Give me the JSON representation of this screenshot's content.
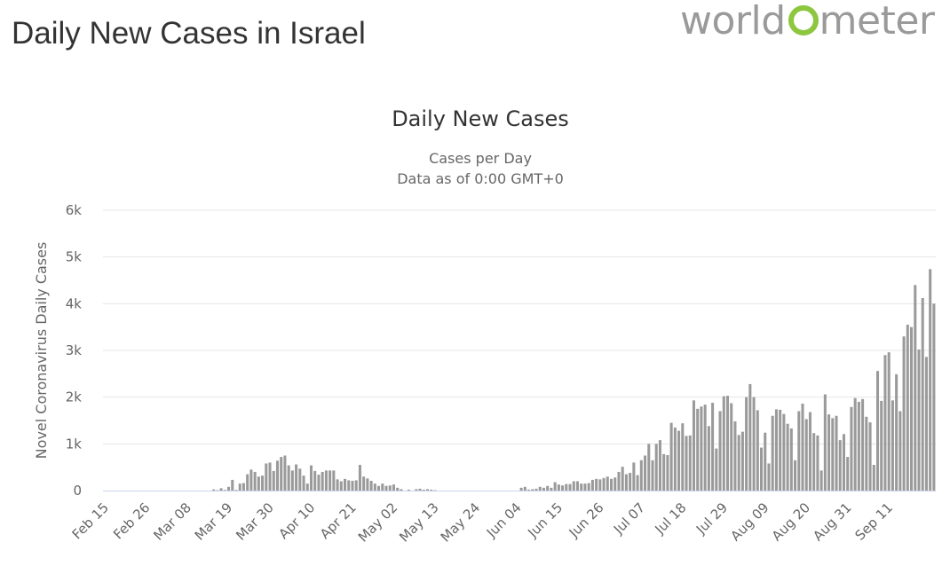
{
  "page": {
    "title": "Daily New Cases in Israel"
  },
  "logo": {
    "text_pre": "world",
    "text_post": "meter",
    "icon": "worldometer-logo-icon"
  },
  "colors": {
    "bar": "#9a9a9a",
    "grid": "#e6e6e6",
    "axis_text": "#666666",
    "title_text": "#333333",
    "logo_green": "#8dc63f"
  },
  "chart_data": {
    "type": "bar",
    "title": "Daily New Cases",
    "subtitle_lines": [
      "Cases per Day",
      "Data as of 0:00 GMT+0"
    ],
    "xlabel": "",
    "ylabel": "Novel Coronavirus Daily Cases",
    "ylim": [
      0,
      6000
    ],
    "ytick_values": [
      0,
      1000,
      2000,
      3000,
      4000,
      5000,
      6000
    ],
    "ytick_labels": [
      "0",
      "1k",
      "2k",
      "3k",
      "4k",
      "5k",
      "6k"
    ],
    "xtick_labels": [
      "Feb 15",
      "Feb 26",
      "Mar 08",
      "Mar 19",
      "Mar 30",
      "Apr 10",
      "Apr 21",
      "May 02",
      "May 13",
      "May 24",
      "Jun 04",
      "Jun 15",
      "Jun 26",
      "Jul 07",
      "Jul 18",
      "Jul 29",
      "Aug 09",
      "Aug 20",
      "Aug 31",
      "Sep 11"
    ],
    "xtick_interval_days": 11,
    "start_date": "Feb 15",
    "values": [
      0,
      0,
      0,
      0,
      0,
      0,
      0,
      0,
      0,
      0,
      0,
      0,
      0,
      0,
      0,
      0,
      0,
      0,
      0,
      0,
      0,
      0,
      0,
      0,
      0,
      0,
      0,
      0,
      0,
      25,
      10,
      50,
      15,
      80,
      230,
      15,
      150,
      160,
      350,
      450,
      400,
      300,
      320,
      580,
      600,
      420,
      640,
      720,
      750,
      540,
      430,
      560,
      470,
      320,
      150,
      540,
      420,
      340,
      400,
      430,
      430,
      430,
      240,
      200,
      250,
      220,
      210,
      220,
      550,
      300,
      260,
      210,
      150,
      100,
      150,
      100,
      110,
      130,
      60,
      30,
      0,
      20,
      0,
      30,
      40,
      20,
      30,
      20,
      10,
      0,
      0,
      0,
      0,
      0,
      0,
      0,
      0,
      0,
      0,
      0,
      0,
      0,
      0,
      0,
      0,
      0,
      0,
      0,
      0,
      0,
      0,
      60,
      80,
      20,
      30,
      40,
      80,
      60,
      100,
      60,
      180,
      130,
      110,
      140,
      140,
      200,
      200,
      150,
      150,
      160,
      230,
      250,
      240,
      270,
      300,
      250,
      280,
      400,
      510,
      350,
      380,
      600,
      330,
      650,
      750,
      1000,
      650,
      1000,
      1080,
      780,
      760,
      1450,
      1350,
      1280,
      1440,
      1170,
      1180,
      1930,
      1750,
      1800,
      1840,
      1380,
      1880,
      900,
      1700,
      2020,
      2030,
      1870,
      1480,
      1190,
      1260,
      2000,
      2280,
      2000,
      1720,
      920,
      1240,
      580,
      1600,
      1740,
      1730,
      1640,
      1430,
      1330,
      650,
      1700,
      1860,
      1530,
      1680,
      1230,
      1180,
      430,
      2060,
      1630,
      1550,
      1600,
      1080,
      1210,
      720,
      1790,
      1980,
      1900,
      1960,
      1580,
      1460,
      550,
      2560,
      1920,
      2900,
      2960,
      1930,
      2490,
      1700,
      3300,
      3550,
      3500,
      4400,
      3020,
      4120,
      2860,
      4740,
      4000
    ]
  }
}
